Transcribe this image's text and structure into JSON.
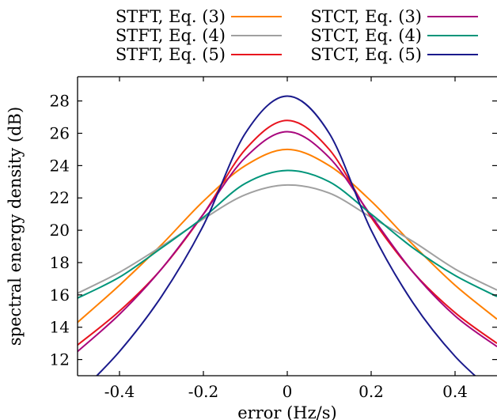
{
  "chart_data": {
    "type": "line",
    "title": "",
    "xlabel": "error (Hz/s)",
    "ylabel": "spectral energy density (dB)",
    "xlim": [
      -0.5,
      0.5
    ],
    "ylim": [
      11,
      29.5
    ],
    "xticks": [
      -0.4,
      -0.2,
      0,
      0.2,
      0.4
    ],
    "xtick_labels": [
      "-0.4",
      "-0.2",
      "0",
      "0.2",
      "0.4"
    ],
    "yticks": [
      12,
      14,
      16,
      18,
      20,
      22,
      24,
      26,
      28
    ],
    "ytick_labels": [
      "12",
      "14",
      "16",
      "18",
      "20",
      "22",
      "24",
      "26",
      "28"
    ],
    "grid": false,
    "legend_position": "top",
    "series": [
      {
        "name": "STFT, Eq. (3)",
        "color": "#ff8000",
        "x": [
          -0.5,
          -0.4,
          -0.3,
          -0.2,
          -0.1,
          0,
          0.1,
          0.2,
          0.3,
          0.4,
          0.5
        ],
        "y": [
          14.3,
          16.6,
          19.1,
          21.8,
          24.0,
          25.0,
          24.0,
          21.8,
          19.1,
          16.6,
          14.5
        ]
      },
      {
        "name": "STFT, Eq. (4)",
        "color": "#a0a0a0",
        "x": [
          -0.5,
          -0.4,
          -0.3,
          -0.2,
          -0.1,
          0,
          0.1,
          0.2,
          0.3,
          0.4,
          0.5
        ],
        "y": [
          16.1,
          17.4,
          19.0,
          20.7,
          22.2,
          22.8,
          22.3,
          20.8,
          19.3,
          17.6,
          16.3
        ]
      },
      {
        "name": "STFT, Eq. (5)",
        "color": "#e8141e",
        "x": [
          -0.5,
          -0.4,
          -0.3,
          -0.2,
          -0.1,
          0,
          0.1,
          0.2,
          0.3,
          0.4,
          0.5
        ],
        "y": [
          12.9,
          15.0,
          17.6,
          21.0,
          25.0,
          26.8,
          25.0,
          20.8,
          17.4,
          14.9,
          13.0
        ]
      },
      {
        "name": "STCT, Eq. (3)",
        "color": "#a8067d",
        "x": [
          -0.5,
          -0.4,
          -0.3,
          -0.2,
          -0.1,
          0,
          0.1,
          0.2,
          0.3,
          0.4,
          0.5
        ],
        "y": [
          12.5,
          14.8,
          17.6,
          21.0,
          24.5,
          26.1,
          24.5,
          20.9,
          17.4,
          14.7,
          12.8
        ]
      },
      {
        "name": "STCT, Eq. (4)",
        "color": "#00957a",
        "x": [
          -0.5,
          -0.4,
          -0.3,
          -0.2,
          -0.1,
          0,
          0.1,
          0.2,
          0.3,
          0.4,
          0.5
        ],
        "y": [
          15.8,
          17.1,
          18.9,
          20.8,
          22.9,
          23.7,
          23.0,
          21.0,
          18.9,
          17.2,
          15.9
        ]
      },
      {
        "name": "STCT, Eq. (5)",
        "color": "#1a1a8c",
        "x": [
          -0.5,
          -0.4,
          -0.3,
          -0.2,
          -0.1,
          0,
          0.1,
          0.2,
          0.3,
          0.4,
          0.5
        ],
        "y": [
          9.8,
          12.5,
          15.9,
          20.3,
          26.0,
          28.3,
          26.0,
          20.0,
          15.5,
          12.2,
          9.8
        ]
      }
    ]
  }
}
